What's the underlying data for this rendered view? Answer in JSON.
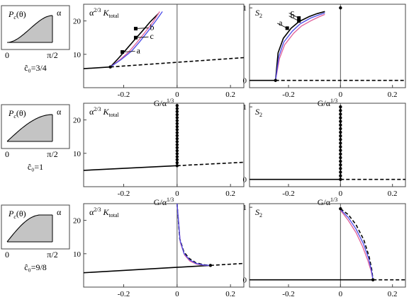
{
  "colors": {
    "black": "#000000",
    "blue": "#4a4ae8",
    "pink": "#e0609a",
    "fill": "#c4c4c4",
    "axis": "#444444"
  },
  "rows": [
    {
      "id": "row1",
      "inset": {
        "ylabel": "P",
        "ylabel_sub": "c",
        "ylabel_arg": "(θ)",
        "alpha": "α",
        "x0": "0",
        "x1": "π/2",
        "caption": "ĉ₀=3/4",
        "shape": "sigmoid"
      },
      "k_panel": {
        "title": "α",
        "title_sup": "2/3",
        "title_rest": "K",
        "title_sub": "total",
        "xticks": [
          "-0.2",
          "0",
          "0.2"
        ],
        "yticks": [
          "10",
          "20"
        ],
        "labels": [
          "a",
          "b",
          "c"
        ]
      },
      "s_panel": {
        "title": "S",
        "title_sub": "2",
        "xticks": [
          "-0.2",
          "0",
          "0.2"
        ],
        "yticks": [
          "0",
          "1"
        ],
        "labels": [
          "a",
          "b",
          "c"
        ]
      }
    },
    {
      "id": "row2",
      "inset": {
        "ylabel": "P",
        "ylabel_sub": "c",
        "ylabel_arg": "(θ)",
        "alpha": "α",
        "x0": "0",
        "x1": "π/2",
        "caption": "ĉ₀=1",
        "shape": "sine"
      },
      "k_panel": {
        "title": "α",
        "title_sup": "2/3",
        "title_rest": "K",
        "title_sub": "total",
        "xticks": [
          "-0.2",
          "0",
          "0.2"
        ],
        "yticks": [
          "10",
          "20"
        ],
        "labels": []
      },
      "s_panel": {
        "title": "S",
        "title_sub": "2",
        "xticks": [
          "-0.2",
          "0",
          "0.2"
        ],
        "yticks": [
          "0",
          "1"
        ],
        "labels": []
      }
    },
    {
      "id": "row3",
      "inset": {
        "ylabel": "P",
        "ylabel_sub": "c",
        "ylabel_arg": "(θ)",
        "alpha": "α",
        "x0": "0",
        "x1": "π/2",
        "caption": "ĉ₀=9/8",
        "shape": "saturate"
      },
      "k_panel": {
        "title": "α",
        "title_sup": "2/3",
        "title_rest": "K",
        "title_sub": "total",
        "xticks": [
          "-0.2",
          "0",
          "0.2"
        ],
        "yticks": [
          "10",
          "20"
        ],
        "labels": []
      },
      "s_panel": {
        "title": "S",
        "title_sub": "2",
        "xticks": [
          "-0.2",
          "0",
          "0.2"
        ],
        "yticks": [
          "0",
          "1"
        ],
        "labels": []
      }
    }
  ],
  "xlabel": "G/α",
  "xlabel_sup": "1/3",
  "chart_data": [
    {
      "type": "line",
      "panel": "row1-K",
      "xlim": [
        -0.35,
        0.25
      ],
      "ylim": [
        0,
        25
      ],
      "series": [
        {
          "style": "dashed",
          "x": [
            -0.25,
            0.25
          ],
          "y": [
            6.2,
            9.0
          ]
        },
        {
          "style": "solid",
          "x": [
            -0.35,
            -0.25
          ],
          "y": [
            5.7,
            6.2
          ]
        },
        {
          "style": "solid",
          "color": "black",
          "x": [
            -0.25,
            -0.22,
            -0.19,
            -0.16,
            -0.13,
            -0.1,
            -0.07
          ],
          "y": [
            6.2,
            8.8,
            11.5,
            14.3,
            17.0,
            19.8,
            22.2
          ]
        },
        {
          "style": "solid",
          "color": "pink",
          "x": [
            -0.25,
            -0.215,
            -0.18,
            -0.15,
            -0.12,
            -0.09,
            -0.065
          ],
          "y": [
            6.2,
            8.3,
            10.8,
            13.6,
            16.6,
            19.7,
            22.8
          ]
        },
        {
          "style": "solid",
          "color": "blue",
          "x": [
            -0.25,
            -0.21,
            -0.17,
            -0.14,
            -0.11,
            -0.08,
            -0.055
          ],
          "y": [
            6.2,
            8.4,
            11.0,
            13.8,
            16.8,
            20.0,
            22.8
          ]
        }
      ],
      "points": [
        {
          "x": -0.25,
          "y": 6.2
        }
      ],
      "markers": [
        {
          "label": "a",
          "x": -0.205,
          "y": 10.7
        },
        {
          "label": "b",
          "x": -0.155,
          "y": 17.7
        },
        {
          "label": "c",
          "x": -0.155,
          "y": 15.0
        }
      ]
    },
    {
      "type": "line",
      "panel": "row1-S",
      "xlim": [
        -0.35,
        0.25
      ],
      "ylim": [
        -0.1,
        1.05
      ],
      "series": [
        {
          "style": "solid",
          "x": [
            -0.35,
            -0.25
          ],
          "y": [
            0,
            0
          ]
        },
        {
          "style": "dashed",
          "x": [
            -0.25,
            0.25
          ],
          "y": [
            0,
            0
          ]
        },
        {
          "style": "solid",
          "color": "black",
          "x": [
            -0.25,
            -0.24,
            -0.22,
            -0.19,
            -0.16,
            -0.12,
            -0.09,
            -0.06
          ],
          "y": [
            0,
            0.38,
            0.58,
            0.72,
            0.81,
            0.88,
            0.92,
            0.95
          ]
        },
        {
          "style": "solid",
          "color": "pink",
          "x": [
            -0.25,
            -0.235,
            -0.215,
            -0.18,
            -0.15,
            -0.11,
            -0.08,
            -0.06
          ],
          "y": [
            0,
            0.3,
            0.49,
            0.65,
            0.75,
            0.83,
            0.88,
            0.91
          ]
        },
        {
          "style": "solid",
          "color": "blue",
          "x": [
            -0.25,
            -0.237,
            -0.218,
            -0.185,
            -0.155,
            -0.115,
            -0.085,
            -0.06
          ],
          "y": [
            0,
            0.33,
            0.53,
            0.68,
            0.78,
            0.86,
            0.9,
            0.93
          ]
        }
      ],
      "points": [
        {
          "x": -0.25,
          "y": 0
        },
        {
          "x": 0,
          "y": 1.0
        }
      ],
      "markers": [
        {
          "label": "a",
          "x": -0.205,
          "y": 0.72
        },
        {
          "label": "b",
          "x": -0.16,
          "y": 0.82
        },
        {
          "label": "c",
          "x": -0.16,
          "y": 0.86
        }
      ]
    },
    {
      "type": "line",
      "panel": "row2-K",
      "xlim": [
        -0.35,
        0.25
      ],
      "ylim": [
        0,
        25
      ],
      "series": [
        {
          "style": "solid",
          "x": [
            -0.35,
            0
          ],
          "y": [
            4.9,
            6.3
          ]
        },
        {
          "style": "dashed",
          "x": [
            0,
            0.25
          ],
          "y": [
            6.3,
            7.3
          ]
        },
        {
          "style": "solid",
          "color": "black",
          "x": [
            0,
            0,
            0,
            0
          ],
          "y": [
            6.3,
            12,
            18,
            24.5
          ]
        }
      ],
      "points": [
        {
          "x": 0,
          "y": 6.3
        },
        {
          "x": 0,
          "y": 7.2
        },
        {
          "x": 0,
          "y": 8.1
        },
        {
          "x": 0,
          "y": 9.0
        },
        {
          "x": 0,
          "y": 9.9
        },
        {
          "x": 0,
          "y": 10.8
        },
        {
          "x": 0,
          "y": 11.7
        },
        {
          "x": 0,
          "y": 12.6
        },
        {
          "x": 0,
          "y": 13.5
        },
        {
          "x": 0,
          "y": 14.4
        },
        {
          "x": 0,
          "y": 15.3
        },
        {
          "x": 0,
          "y": 16.2
        },
        {
          "x": 0,
          "y": 17.1
        },
        {
          "x": 0,
          "y": 18.0
        },
        {
          "x": 0,
          "y": 18.9
        },
        {
          "x": 0,
          "y": 19.8
        },
        {
          "x": 0,
          "y": 20.7
        },
        {
          "x": 0,
          "y": 21.6
        },
        {
          "x": 0,
          "y": 22.5
        },
        {
          "x": 0,
          "y": 23.4
        },
        {
          "x": 0,
          "y": 24.3
        }
      ],
      "markers": []
    },
    {
      "type": "line",
      "panel": "row2-S",
      "xlim": [
        -0.35,
        0.25
      ],
      "ylim": [
        -0.1,
        1.05
      ],
      "series": [
        {
          "style": "solid",
          "x": [
            -0.35,
            0
          ],
          "y": [
            0,
            0
          ]
        },
        {
          "style": "dashed",
          "x": [
            0,
            0.25
          ],
          "y": [
            0,
            0
          ]
        },
        {
          "style": "solid",
          "color": "black",
          "x": [
            0,
            0
          ],
          "y": [
            0,
            1.0
          ]
        }
      ],
      "points": [
        {
          "x": 0,
          "y": 0
        },
        {
          "x": 0,
          "y": 0.05
        },
        {
          "x": 0,
          "y": 0.1
        },
        {
          "x": 0,
          "y": 0.15
        },
        {
          "x": 0,
          "y": 0.2
        },
        {
          "x": 0,
          "y": 0.25
        },
        {
          "x": 0,
          "y": 0.3
        },
        {
          "x": 0,
          "y": 0.35
        },
        {
          "x": 0,
          "y": 0.4
        },
        {
          "x": 0,
          "y": 0.45
        },
        {
          "x": 0,
          "y": 0.5
        },
        {
          "x": 0,
          "y": 0.55
        },
        {
          "x": 0,
          "y": 0.6
        },
        {
          "x": 0,
          "y": 0.65
        },
        {
          "x": 0,
          "y": 0.7
        },
        {
          "x": 0,
          "y": 0.75
        },
        {
          "x": 0,
          "y": 0.8
        },
        {
          "x": 0,
          "y": 0.85
        },
        {
          "x": 0,
          "y": 0.9
        },
        {
          "x": 0,
          "y": 0.95
        },
        {
          "x": 0,
          "y": 1.0
        }
      ],
      "markers": []
    },
    {
      "type": "line",
      "panel": "row3-K",
      "xlim": [
        -0.35,
        0.25
      ],
      "ylim": [
        0,
        25
      ],
      "series": [
        {
          "style": "solid",
          "x": [
            -0.35,
            0.125
          ],
          "y": [
            4.3,
            6.5
          ]
        },
        {
          "style": "dashed",
          "x": [
            0.125,
            0.25
          ],
          "y": [
            6.5,
            7.1
          ]
        },
        {
          "style": "dashed",
          "color": "black",
          "x": [
            0.0,
            0.01,
            0.025,
            0.045,
            0.07,
            0.1,
            0.125
          ],
          "y": [
            25,
            14.5,
            10.6,
            8.6,
            7.3,
            6.7,
            6.5
          ]
        },
        {
          "style": "solid",
          "color": "pink",
          "x": [
            0.0,
            0.012,
            0.028,
            0.048,
            0.072,
            0.1,
            0.125
          ],
          "y": [
            25,
            13.3,
            9.6,
            7.8,
            6.9,
            6.55,
            6.5
          ]
        },
        {
          "style": "solid",
          "color": "blue",
          "x": [
            0.0,
            0.011,
            0.026,
            0.046,
            0.071,
            0.1,
            0.125
          ],
          "y": [
            25,
            14.0,
            10.1,
            8.2,
            7.1,
            6.6,
            6.5
          ]
        }
      ],
      "points": [
        {
          "x": 0.125,
          "y": 6.5
        }
      ],
      "markers": []
    },
    {
      "type": "line",
      "panel": "row3-S",
      "xlim": [
        -0.35,
        0.25
      ],
      "ylim": [
        -0.1,
        1.05
      ],
      "series": [
        {
          "style": "solid",
          "x": [
            -0.35,
            0.125
          ],
          "y": [
            0,
            0
          ]
        },
        {
          "style": "dashed",
          "x": [
            0.125,
            0.25
          ],
          "y": [
            0,
            0
          ]
        },
        {
          "style": "dashed",
          "color": "black",
          "x": [
            0.0,
            0.03,
            0.06,
            0.09,
            0.11,
            0.12,
            0.125
          ],
          "y": [
            0.98,
            0.9,
            0.76,
            0.55,
            0.32,
            0.15,
            0
          ]
        },
        {
          "style": "solid",
          "color": "pink",
          "x": [
            0.0,
            0.03,
            0.06,
            0.085,
            0.105,
            0.118,
            0.125
          ],
          "y": [
            0.96,
            0.82,
            0.65,
            0.46,
            0.27,
            0.12,
            0
          ]
        },
        {
          "style": "solid",
          "color": "blue",
          "x": [
            0.0,
            0.03,
            0.06,
            0.088,
            0.108,
            0.119,
            0.125
          ],
          "y": [
            0.97,
            0.86,
            0.7,
            0.5,
            0.3,
            0.13,
            0
          ]
        }
      ],
      "points": [
        {
          "x": 0,
          "y": 0.98
        },
        {
          "x": 0.125,
          "y": 0
        }
      ],
      "markers": []
    }
  ]
}
